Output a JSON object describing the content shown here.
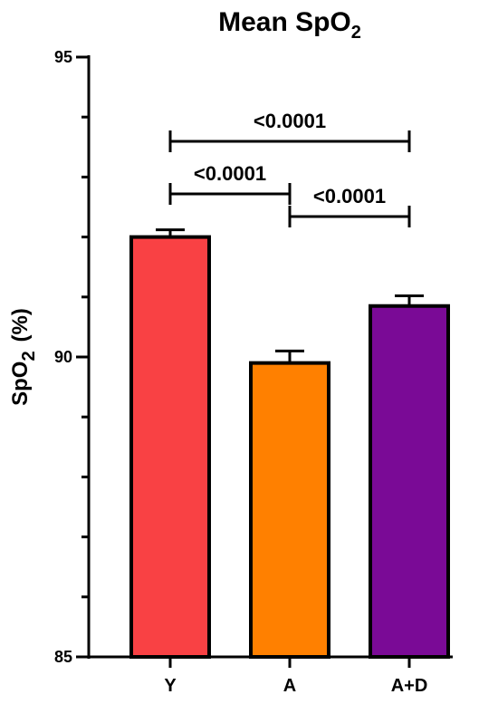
{
  "chart_data": {
    "type": "bar",
    "title_main": "Mean SpO",
    "title_sub": "2",
    "ylabel_main": "SpO",
    "ylabel_sub": "2",
    "ylabel_unit": "(%)",
    "ylim": [
      85,
      95
    ],
    "yticks_labeled": [
      85,
      90,
      95
    ],
    "yticks_minor": [
      86,
      87,
      88,
      89,
      91,
      92,
      93,
      94
    ],
    "categories": [
      "Y",
      "A",
      "A+D"
    ],
    "values": [
      92.0,
      89.9,
      90.85
    ],
    "errors": [
      0.12,
      0.2,
      0.17
    ],
    "colors": [
      "#f94144",
      "#ff8000",
      "#7a0a96"
    ],
    "comparisons": [
      {
        "from": 0,
        "to": 2,
        "label": "<0.0001"
      },
      {
        "from": 0,
        "to": 1,
        "label": "<0.0001"
      },
      {
        "from": 1,
        "to": 2,
        "label": "<0.0001"
      }
    ]
  }
}
